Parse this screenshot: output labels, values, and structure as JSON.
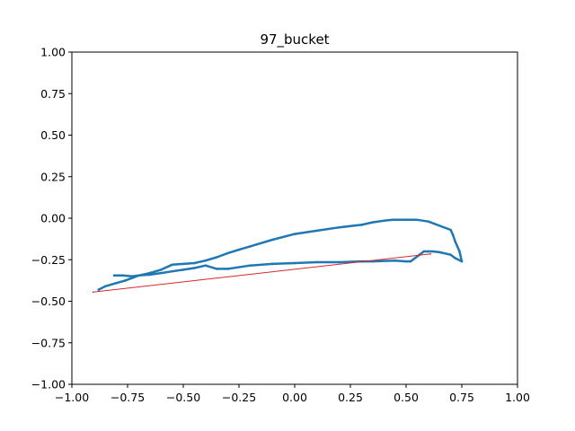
{
  "chart_data": {
    "type": "line",
    "title": "97_bucket",
    "xlabel": "",
    "ylabel": "",
    "xlim": [
      -1.0,
      1.0
    ],
    "ylim": [
      -1.0,
      1.0
    ],
    "xticks": [
      "−1.00",
      "−0.75",
      "−0.50",
      "−0.25",
      "0.00",
      "0.25",
      "0.50",
      "0.75",
      "1.00"
    ],
    "yticks": [
      "−1.00",
      "−0.75",
      "−0.50",
      "−0.25",
      "0.00",
      "0.25",
      "0.50",
      "0.75",
      "1.00"
    ],
    "grid": false,
    "series": [
      {
        "color": "#1f77b4",
        "x": [
          -0.81,
          -0.77,
          -0.73,
          -0.7,
          -0.65,
          -0.6,
          -0.55,
          -0.5,
          -0.45,
          -0.4,
          -0.35,
          -0.3,
          -0.25,
          -0.2,
          -0.1,
          0.0,
          0.1,
          0.2,
          0.3,
          0.35,
          0.4,
          0.44,
          0.5,
          0.55,
          0.6,
          0.7,
          0.71,
          0.72,
          0.74,
          0.75,
          0.72,
          0.7,
          0.65,
          0.62,
          0.6,
          0.58,
          0.56,
          0.52,
          0.5,
          0.45,
          0.35,
          0.3,
          0.2,
          0.1,
          0.0,
          -0.1,
          -0.2,
          -0.3,
          -0.35,
          -0.4,
          -0.45,
          -0.5,
          -0.55,
          -0.6,
          -0.65,
          -0.7,
          -0.73,
          -0.76,
          -0.8,
          -0.85,
          -0.88
        ],
        "y": [
          -0.345,
          -0.345,
          -0.35,
          -0.345,
          -0.33,
          -0.31,
          -0.28,
          -0.275,
          -0.27,
          -0.255,
          -0.235,
          -0.21,
          -0.19,
          -0.17,
          -0.13,
          -0.095,
          -0.075,
          -0.055,
          -0.04,
          -0.025,
          -0.015,
          -0.01,
          -0.01,
          -0.01,
          -0.02,
          -0.07,
          -0.1,
          -0.14,
          -0.2,
          -0.26,
          -0.24,
          -0.22,
          -0.205,
          -0.2,
          -0.2,
          -0.2,
          -0.22,
          -0.26,
          -0.26,
          -0.255,
          -0.26,
          -0.26,
          -0.265,
          -0.265,
          -0.27,
          -0.275,
          -0.285,
          -0.305,
          -0.305,
          -0.285,
          -0.3,
          -0.31,
          -0.32,
          -0.33,
          -0.34,
          -0.345,
          -0.36,
          -0.375,
          -0.39,
          -0.41,
          -0.43
        ]
      },
      {
        "color": "#d62728",
        "x": [
          -0.905,
          0.61
        ],
        "y": [
          -0.445,
          -0.215
        ]
      }
    ]
  }
}
